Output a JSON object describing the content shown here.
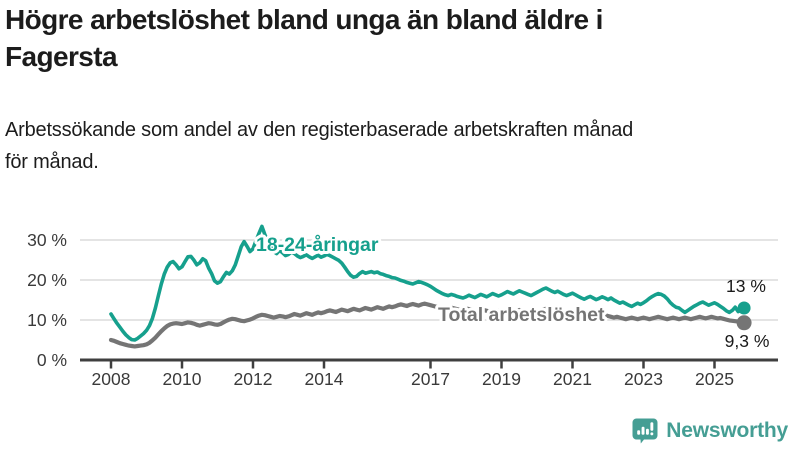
{
  "header": {
    "title_lines": [
      "Högre arbetslöshet bland unga än bland äldre i",
      "Fagersta"
    ],
    "subtitle_lines": [
      "Arbetssökande som andel av den registerbaserade arbetskraften månad",
      "för månad."
    ]
  },
  "colors": {
    "youth_line": "#16a08d",
    "total_line": "#757575",
    "axis": "#3f3f3f",
    "grid": "#dcdcdc",
    "tick_text": "#3a3a3a",
    "annotation_text": "#1a1a1a",
    "brand": "#459e94"
  },
  "chart_data": {
    "type": "line",
    "title": "",
    "xlabel": "",
    "ylabel": "",
    "x_start_year": 2008,
    "points_per_year": 12,
    "ylim": [
      0,
      34
    ],
    "grid": true,
    "legend_position": "inline-labels",
    "xticks": [
      {
        "year": 2008,
        "label": "2008"
      },
      {
        "year": 2010,
        "label": "2010"
      },
      {
        "year": 2012,
        "label": "2012"
      },
      {
        "year": 2014,
        "label": "2014"
      },
      {
        "year": 2017,
        "label": "2017"
      },
      {
        "year": 2019,
        "label": "2019"
      },
      {
        "year": 2021,
        "label": "2021"
      },
      {
        "year": 2023,
        "label": "2023"
      },
      {
        "year": 2025,
        "label": "2025"
      }
    ],
    "yticks": [
      {
        "value": 0,
        "label": "0 %"
      },
      {
        "value": 10,
        "label": "10 %"
      },
      {
        "value": 20,
        "label": "20 %"
      },
      {
        "value": 30,
        "label": "30 %"
      }
    ],
    "series": [
      {
        "name": "18-24-åringar",
        "color": "#16a08d",
        "end_label": "13 %",
        "end_value": 13.0,
        "values": [
          11.5,
          10.3,
          9.2,
          8.2,
          7.2,
          6.3,
          5.6,
          5.1,
          5.0,
          5.4,
          6.0,
          6.6,
          7.4,
          8.6,
          10.4,
          13.0,
          16.0,
          19.0,
          21.5,
          23.2,
          24.3,
          24.6,
          23.8,
          22.8,
          23.3,
          24.6,
          25.8,
          25.9,
          25.0,
          23.8,
          24.3,
          25.3,
          24.8,
          23.0,
          21.6,
          19.8,
          19.2,
          19.6,
          20.8,
          21.9,
          21.5,
          22.3,
          23.8,
          26.0,
          28.3,
          29.6,
          28.4,
          27.1,
          27.8,
          29.8,
          31.6,
          33.4,
          31.4,
          29.6,
          28.2,
          27.1,
          26.6,
          27.4,
          26.8,
          26.1,
          26.4,
          27.0,
          26.6,
          26.0,
          25.6,
          25.9,
          26.3,
          25.8,
          25.4,
          25.8,
          26.2,
          25.7,
          26.0,
          26.4,
          26.1,
          25.7,
          25.3,
          24.9,
          24.2,
          23.2,
          22.1,
          21.2,
          20.7,
          20.9,
          21.6,
          22.1,
          21.7,
          21.9,
          22.1,
          21.8,
          22.0,
          21.6,
          21.4,
          21.1,
          20.9,
          20.6,
          20.5,
          20.2,
          19.9,
          19.7,
          19.4,
          19.2,
          19.0,
          19.3,
          19.6,
          19.4,
          19.1,
          18.8,
          18.4,
          17.9,
          17.4,
          17.0,
          16.6,
          16.3,
          16.1,
          16.4,
          16.2,
          15.9,
          15.7,
          15.5,
          15.8,
          16.2,
          15.9,
          15.6,
          16.0,
          16.4,
          16.1,
          15.8,
          16.2,
          16.6,
          16.3,
          16.0,
          16.3,
          16.7,
          17.1,
          16.8,
          16.5,
          16.9,
          17.3,
          17.0,
          16.7,
          16.4,
          16.1,
          16.5,
          16.9,
          17.3,
          17.7,
          18.0,
          17.6,
          17.2,
          16.9,
          17.2,
          16.8,
          16.4,
          16.1,
          16.4,
          16.7,
          16.3,
          15.9,
          15.5,
          15.2,
          15.6,
          15.9,
          15.5,
          15.1,
          15.4,
          15.8,
          15.5,
          15.1,
          15.5,
          15.0,
          14.6,
          14.2,
          14.5,
          14.1,
          13.7,
          13.4,
          13.8,
          14.2,
          13.9,
          14.3,
          14.8,
          15.4,
          15.9,
          16.3,
          16.6,
          16.4,
          16.0,
          15.3,
          14.4,
          13.7,
          13.2,
          13.0,
          12.4,
          11.9,
          12.4,
          12.9,
          13.4,
          13.8,
          14.2,
          14.5,
          14.1,
          13.7,
          14.0,
          14.3,
          13.9,
          13.4,
          12.9,
          12.3,
          11.9,
          12.4,
          13.2,
          12.1,
          12.5,
          13.0
        ]
      },
      {
        "name": "Total arbetslöshet",
        "color": "#757575",
        "end_label": "9,3 %",
        "end_value": 9.3,
        "values": [
          5.0,
          4.8,
          4.5,
          4.2,
          4.0,
          3.8,
          3.6,
          3.5,
          3.4,
          3.5,
          3.6,
          3.7,
          3.9,
          4.3,
          4.9,
          5.6,
          6.4,
          7.2,
          7.9,
          8.5,
          8.9,
          9.1,
          9.2,
          9.1,
          9.0,
          9.2,
          9.4,
          9.3,
          9.1,
          8.8,
          8.6,
          8.8,
          9.0,
          9.2,
          9.1,
          8.9,
          8.8,
          9.0,
          9.4,
          9.8,
          10.1,
          10.3,
          10.2,
          10.0,
          9.8,
          9.7,
          9.9,
          10.1,
          10.4,
          10.8,
          11.1,
          11.3,
          11.2,
          11.0,
          10.8,
          10.6,
          10.8,
          11.0,
          10.9,
          10.7,
          10.9,
          11.2,
          11.5,
          11.3,
          11.1,
          11.4,
          11.7,
          11.5,
          11.3,
          11.6,
          11.9,
          11.7,
          11.9,
          12.2,
          12.4,
          12.2,
          12.0,
          12.3,
          12.6,
          12.4,
          12.2,
          12.5,
          12.8,
          12.6,
          12.4,
          12.7,
          13.0,
          12.8,
          12.6,
          12.9,
          13.2,
          13.0,
          12.8,
          13.1,
          13.4,
          13.2,
          13.4,
          13.7,
          13.9,
          13.7,
          13.5,
          13.8,
          14.0,
          13.8,
          13.6,
          13.9,
          14.1,
          13.9,
          13.7,
          13.5,
          13.3,
          13.1,
          12.9,
          13.1,
          13.3,
          13.1,
          12.9,
          12.7,
          12.5,
          12.7,
          12.9,
          12.7,
          12.5,
          12.3,
          12.1,
          12.3,
          12.5,
          12.3,
          12.1,
          11.9,
          12.1,
          12.3,
          12.5,
          12.3,
          12.1,
          11.9,
          12.1,
          12.3,
          12.5,
          12.3,
          12.1,
          11.9,
          11.7,
          11.9,
          12.1,
          12.3,
          12.6,
          12.8,
          12.6,
          12.4,
          12.2,
          12.4,
          12.2,
          12.0,
          11.8,
          11.6,
          11.8,
          11.6,
          11.4,
          11.2,
          11.0,
          11.2,
          11.4,
          11.2,
          11.0,
          10.8,
          11.0,
          11.2,
          11.0,
          10.8,
          10.6,
          10.8,
          10.6,
          10.4,
          10.2,
          10.4,
          10.6,
          10.4,
          10.2,
          10.4,
          10.6,
          10.4,
          10.2,
          10.4,
          10.6,
          10.8,
          10.6,
          10.4,
          10.2,
          10.4,
          10.6,
          10.4,
          10.2,
          10.4,
          10.6,
          10.4,
          10.2,
          10.4,
          10.6,
          10.8,
          10.6,
          10.4,
          10.6,
          10.8,
          10.6,
          10.4,
          10.5,
          10.3,
          10.1,
          9.9,
          9.8,
          9.7,
          9.6,
          9.4,
          9.3
        ]
      }
    ]
  },
  "footer": {
    "brand": "Newsworthy"
  }
}
